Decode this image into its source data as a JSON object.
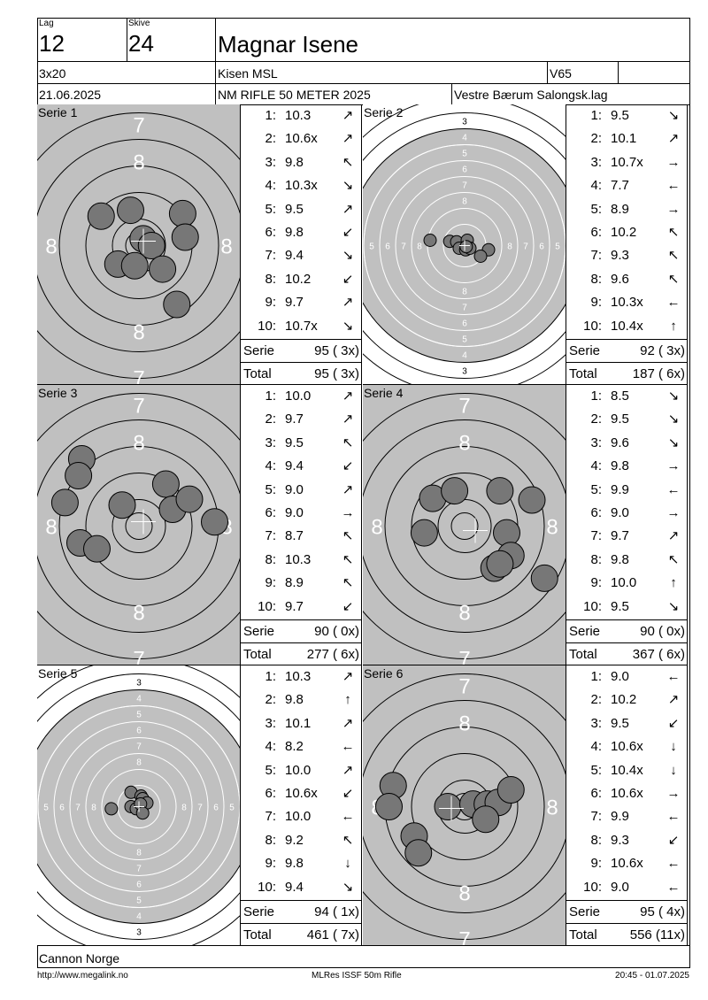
{
  "header": {
    "lag_label": "Lag",
    "lag_value": "12",
    "skive_label": "Skive",
    "skive_value": "24",
    "shooter_name": "Magnar Isene",
    "program": "3x20",
    "club": "Kisen MSL",
    "class": "V65",
    "class_extra": "",
    "date": "21.06.2025",
    "event": "NM RIFLE 50 METER 2025",
    "organizer": "Vestre Bærum Salongsk.lag"
  },
  "series": [
    {
      "label": "Serie 1",
      "target_type": "standing-zoom",
      "shots": [
        {
          "n": "1:",
          "v": "10.3",
          "arrow": "north-east"
        },
        {
          "n": "2:",
          "v": "10.6x",
          "arrow": "north-east"
        },
        {
          "n": "3:",
          "v": "9.8",
          "arrow": "north-west"
        },
        {
          "n": "4:",
          "v": "10.3x",
          "arrow": "south-east"
        },
        {
          "n": "5:",
          "v": "9.5",
          "arrow": "north-east"
        },
        {
          "n": "6:",
          "v": "9.8",
          "arrow": "south-west"
        },
        {
          "n": "7:",
          "v": "9.4",
          "arrow": "south-east"
        },
        {
          "n": "8:",
          "v": "10.2",
          "arrow": "south-west"
        },
        {
          "n": "9:",
          "v": "9.7",
          "arrow": "north-east"
        },
        {
          "n": "10:",
          "v": "10.7x",
          "arrow": "south-east"
        }
      ],
      "serie_label": "Serie",
      "serie_value": "95 ( 3x)",
      "total_label": "Total",
      "total_value": "95 ( 3x)",
      "hits": [
        [
          -0.45,
          0.35
        ],
        [
          -0.1,
          0.42
        ],
        [
          0.52,
          0.38
        ],
        [
          0.55,
          0.1
        ],
        [
          0.05,
          0.08
        ],
        [
          0.15,
          0.0
        ],
        [
          -0.25,
          -0.22
        ],
        [
          -0.05,
          -0.24
        ],
        [
          0.28,
          -0.28
        ],
        [
          0.45,
          -0.7
        ]
      ]
    },
    {
      "label": "Serie 2",
      "target_type": "full",
      "shots": [
        {
          "n": "1:",
          "v": "9.5",
          "arrow": "south-east"
        },
        {
          "n": "2:",
          "v": "10.1",
          "arrow": "north-east"
        },
        {
          "n": "3:",
          "v": "10.7x",
          "arrow": "east"
        },
        {
          "n": "4:",
          "v": "7.7",
          "arrow": "west"
        },
        {
          "n": "5:",
          "v": "8.9",
          "arrow": "east"
        },
        {
          "n": "6:",
          "v": "10.2",
          "arrow": "north-west"
        },
        {
          "n": "7:",
          "v": "9.3",
          "arrow": "north-west"
        },
        {
          "n": "8:",
          "v": "9.6",
          "arrow": "north-west"
        },
        {
          "n": "9:",
          "v": "10.3x",
          "arrow": "west"
        },
        {
          "n": "10:",
          "v": "10.4x",
          "arrow": "north"
        }
      ],
      "serie_label": "Serie",
      "serie_value": "92 ( 3x)",
      "total_label": "Total",
      "total_value": "187 ( 6x)",
      "hits": [
        [
          -0.65,
          0.1
        ],
        [
          -0.28,
          0.08
        ],
        [
          -0.15,
          0.07
        ],
        [
          0.05,
          0.1
        ],
        [
          -0.1,
          -0.05
        ],
        [
          0.02,
          -0.08
        ],
        [
          0.1,
          -0.05
        ],
        [
          0.45,
          -0.08
        ],
        [
          0.3,
          -0.2
        ],
        [
          0.03,
          -0.02
        ]
      ]
    },
    {
      "label": "Serie 3",
      "target_type": "standing-zoom",
      "shots": [
        {
          "n": "1:",
          "v": "10.0",
          "arrow": "north-east"
        },
        {
          "n": "2:",
          "v": "9.7",
          "arrow": "north-east"
        },
        {
          "n": "3:",
          "v": "9.5",
          "arrow": "north-west"
        },
        {
          "n": "4:",
          "v": "9.4",
          "arrow": "south-west"
        },
        {
          "n": "5:",
          "v": "9.0",
          "arrow": "north-east"
        },
        {
          "n": "6:",
          "v": "9.0",
          "arrow": "east"
        },
        {
          "n": "7:",
          "v": "8.7",
          "arrow": "north-west"
        },
        {
          "n": "8:",
          "v": "10.3",
          "arrow": "north-west"
        },
        {
          "n": "9:",
          "v": "8.9",
          "arrow": "north-west"
        },
        {
          "n": "10:",
          "v": "9.7",
          "arrow": "south-west"
        }
      ],
      "serie_label": "Serie",
      "serie_value": "90 ( 0x)",
      "total_label": "Total",
      "total_value": "277 ( 6x)",
      "hits": [
        [
          -0.68,
          0.8
        ],
        [
          -0.72,
          0.6
        ],
        [
          -0.88,
          0.28
        ],
        [
          -0.2,
          0.25
        ],
        [
          0.32,
          0.5
        ],
        [
          0.4,
          0.2
        ],
        [
          0.6,
          0.32
        ],
        [
          0.9,
          0.05
        ],
        [
          -0.7,
          -0.2
        ],
        [
          -0.5,
          -0.27
        ]
      ]
    },
    {
      "label": "Serie 4",
      "target_type": "standing-zoom",
      "shots": [
        {
          "n": "1:",
          "v": "8.5",
          "arrow": "south-east"
        },
        {
          "n": "2:",
          "v": "9.5",
          "arrow": "south-east"
        },
        {
          "n": "3:",
          "v": "9.6",
          "arrow": "south-east"
        },
        {
          "n": "4:",
          "v": "9.8",
          "arrow": "east"
        },
        {
          "n": "5:",
          "v": "9.9",
          "arrow": "west"
        },
        {
          "n": "6:",
          "v": "9.0",
          "arrow": "east"
        },
        {
          "n": "7:",
          "v": "9.7",
          "arrow": "north-east"
        },
        {
          "n": "8:",
          "v": "9.8",
          "arrow": "north-west"
        },
        {
          "n": "9:",
          "v": "10.0",
          "arrow": "north"
        },
        {
          "n": "10:",
          "v": "9.5",
          "arrow": "south-east"
        }
      ],
      "serie_label": "Serie",
      "serie_value": "90 ( 0x)",
      "total_label": "Total",
      "total_value": "367 ( 6x)",
      "hits": [
        [
          -0.38,
          0.33
        ],
        [
          -0.12,
          0.42
        ],
        [
          0.42,
          0.42
        ],
        [
          0.8,
          0.31
        ],
        [
          -0.48,
          -0.08
        ],
        [
          0.5,
          -0.08
        ],
        [
          0.55,
          -0.35
        ],
        [
          0.35,
          -0.5
        ],
        [
          0.42,
          -0.45
        ],
        [
          0.95,
          -0.62
        ]
      ]
    },
    {
      "label": "Serie 5",
      "target_type": "full",
      "shots": [
        {
          "n": "1:",
          "v": "10.3",
          "arrow": "north-east"
        },
        {
          "n": "2:",
          "v": "9.8",
          "arrow": "north"
        },
        {
          "n": "3:",
          "v": "10.1",
          "arrow": "north-east"
        },
        {
          "n": "4:",
          "v": "8.2",
          "arrow": "west"
        },
        {
          "n": "5:",
          "v": "10.0",
          "arrow": "north-east"
        },
        {
          "n": "6:",
          "v": "10.6x",
          "arrow": "south-west"
        },
        {
          "n": "7:",
          "v": "10.0",
          "arrow": "west"
        },
        {
          "n": "8:",
          "v": "9.2",
          "arrow": "north-west"
        },
        {
          "n": "9:",
          "v": "9.8",
          "arrow": "south"
        },
        {
          "n": "10:",
          "v": "9.4",
          "arrow": "south-east"
        }
      ],
      "serie_label": "Serie",
      "serie_value": "94 ( 1x)",
      "total_label": "Total",
      "total_value": "461 ( 7x)",
      "hits": [
        [
          -0.15,
          0.27
        ],
        [
          0.04,
          0.2
        ],
        [
          0.07,
          0.15
        ],
        [
          0.15,
          0.07
        ],
        [
          -0.15,
          0.0
        ],
        [
          0.0,
          -0.02
        ],
        [
          -0.05,
          -0.04
        ],
        [
          0.03,
          0.05
        ],
        [
          -0.52,
          -0.04
        ],
        [
          0.07,
          -0.12
        ]
      ]
    },
    {
      "label": "Serie 6",
      "target_type": "standing-zoom",
      "shots": [
        {
          "n": "1:",
          "v": "9.0",
          "arrow": "west"
        },
        {
          "n": "2:",
          "v": "10.2",
          "arrow": "north-east"
        },
        {
          "n": "3:",
          "v": "9.5",
          "arrow": "south-west"
        },
        {
          "n": "4:",
          "v": "10.6x",
          "arrow": "south"
        },
        {
          "n": "5:",
          "v": "10.4x",
          "arrow": "south"
        },
        {
          "n": "6:",
          "v": "10.6x",
          "arrow": "east"
        },
        {
          "n": "7:",
          "v": "9.9",
          "arrow": "west"
        },
        {
          "n": "8:",
          "v": "9.3",
          "arrow": "south-west"
        },
        {
          "n": "9:",
          "v": "10.6x",
          "arrow": "west"
        },
        {
          "n": "10:",
          "v": "9.0",
          "arrow": "west"
        }
      ],
      "serie_label": "Serie",
      "serie_value": "95 ( 4x)",
      "total_label": "Total",
      "total_value": "556 (11x)",
      "hits": [
        [
          -0.85,
          0.25
        ],
        [
          -0.9,
          0.0
        ],
        [
          -0.2,
          0.0
        ],
        [
          0.1,
          0.03
        ],
        [
          0.27,
          0.03
        ],
        [
          0.4,
          0.05
        ],
        [
          0.55,
          0.2
        ],
        [
          0.25,
          -0.15
        ],
        [
          -0.6,
          -0.35
        ],
        [
          -0.55,
          -0.55
        ]
      ]
    }
  ],
  "footer": {
    "sponsor": "Cannon Norge",
    "url": "http://www.megalink.no",
    "software": "MLRes ISSF 50m Rifle",
    "printed": "20:45 - 01.07.2025"
  },
  "colors": {
    "target_gray": "#c0c0c0",
    "hit_fill": "#777777",
    "line": "#000000"
  }
}
